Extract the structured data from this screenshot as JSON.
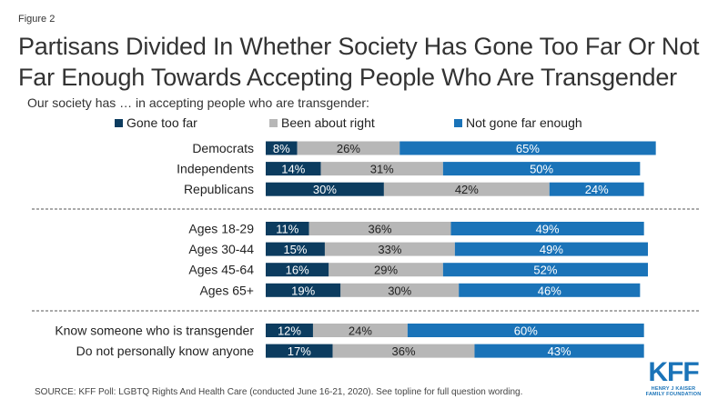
{
  "figure_label": "Figure 2",
  "title": "Partisans Divided In Whether Society Has Gone Too Far Or Not Far Enough Towards Accepting People Who Are Transgender",
  "subtitle": "Our society has … in accepting people who are transgender:",
  "source": "SOURCE: KFF Poll: LGBTQ Rights And Health Care (conducted June 16-21, 2020). See topline for full question wording.",
  "logo": {
    "mark": "KFF",
    "line1": "HENRY J KAISER",
    "line2": "FAMILY FOUNDATION"
  },
  "chart_data": {
    "type": "bar",
    "orientation": "horizontal",
    "stacked": true,
    "xlim": [
      0,
      100
    ],
    "legend_position": "top",
    "series": [
      {
        "name": "Gone too far",
        "color": "#0c3c5f"
      },
      {
        "name": "Been about right",
        "color": "#b7b7b7"
      },
      {
        "name": "Not gone far enough",
        "color": "#1a73b8"
      }
    ],
    "groups": [
      {
        "rows": [
          {
            "label": "Democrats",
            "values": [
              8,
              26,
              65
            ]
          },
          {
            "label": "Independents",
            "values": [
              14,
              31,
              50
            ]
          },
          {
            "label": "Republicans",
            "values": [
              30,
              42,
              24
            ]
          }
        ]
      },
      {
        "rows": [
          {
            "label": "Ages 18-29",
            "values": [
              11,
              36,
              49
            ]
          },
          {
            "label": "Ages 30-44",
            "values": [
              15,
              33,
              49
            ]
          },
          {
            "label": "Ages 45-64",
            "values": [
              16,
              29,
              52
            ]
          },
          {
            "label": "Ages 65+",
            "values": [
              19,
              30,
              46
            ]
          }
        ]
      },
      {
        "rows": [
          {
            "label": "Know someone who is transgender",
            "values": [
              12,
              24,
              60
            ]
          },
          {
            "label": "Do not personally know anyone",
            "values": [
              17,
              36,
              43
            ]
          }
        ]
      }
    ]
  }
}
